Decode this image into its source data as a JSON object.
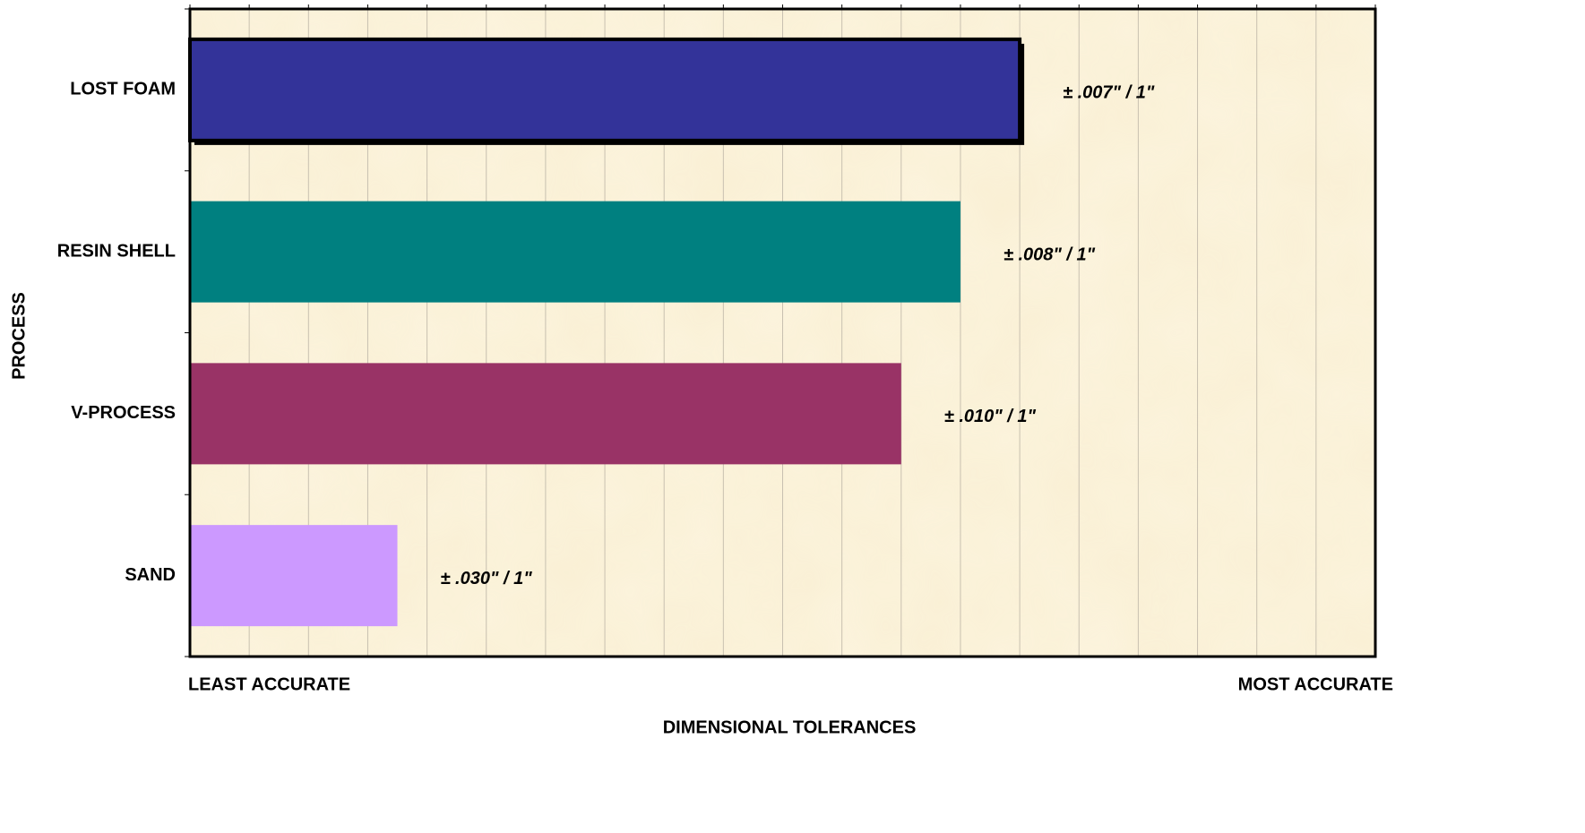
{
  "chart_data": {
    "type": "hbar",
    "categories": [
      "LOST FOAM",
      "RESIN SHELL",
      "V-PROCESS",
      "SAND"
    ],
    "values": [
      14,
      13,
      12,
      3.5
    ],
    "colors": [
      "#333399",
      "#008080",
      "#993366",
      "#cc99ff"
    ],
    "tolerance_labels": [
      "± .007\" / 1\"",
      "± .008\" / 1\"",
      "± .010\" / 1\"",
      "± .030\" / 1\""
    ],
    "xlim": [
      0,
      20
    ],
    "xgrid": [
      0,
      1,
      2,
      3,
      4,
      5,
      6,
      7,
      8,
      9,
      10,
      11,
      12,
      13,
      14,
      15,
      16,
      17,
      18,
      19,
      20
    ],
    "x_end_labels": [
      "LEAST ACCURATE",
      "MOST ACCURATE"
    ],
    "xlabel": "DIMENSIONAL TOLERANCES",
    "ylabel": "PROCESS",
    "grid": true
  }
}
